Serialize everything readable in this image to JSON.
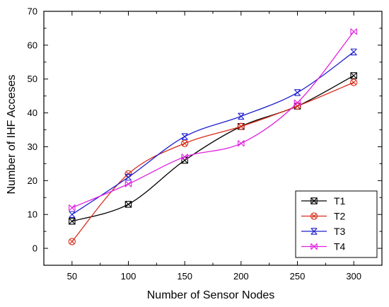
{
  "chart_data": {
    "type": "line",
    "title": "",
    "xlabel": "Number of Sensor Nodes",
    "ylabel": "Number of IHF Acceses",
    "x": [
      50,
      100,
      150,
      200,
      250,
      300
    ],
    "x_ticks": [
      "50",
      "100",
      "150",
      "200",
      "250",
      "300"
    ],
    "y_ticks": [
      "0",
      "10",
      "20",
      "30",
      "40",
      "50",
      "60",
      "70"
    ],
    "xlim": [
      25,
      325
    ],
    "ylim": [
      -5,
      70
    ],
    "grid": false,
    "legend_position": "bottom-right",
    "series": [
      {
        "name": "T1",
        "values": [
          8,
          13,
          26,
          36,
          42,
          51
        ],
        "color": "#000000",
        "marker": "square-x"
      },
      {
        "name": "T2",
        "values": [
          2,
          22,
          31,
          36,
          42,
          49
        ],
        "color": "#d62c1a",
        "marker": "circle-x"
      },
      {
        "name": "T3",
        "values": [
          10,
          21,
          33,
          39,
          46,
          58
        ],
        "color": "#1f1fcf",
        "marker": "hourglass-x"
      },
      {
        "name": "T4",
        "values": [
          12,
          19,
          27,
          31,
          43,
          64
        ],
        "color": "#e020e0",
        "marker": "bowtie-x"
      }
    ]
  }
}
